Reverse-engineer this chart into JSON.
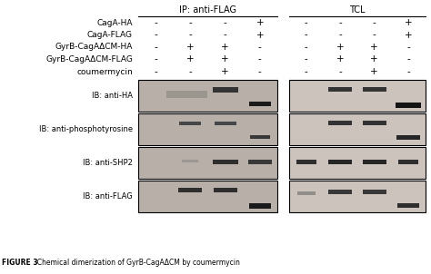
{
  "ip_label": "IP: anti-FLAG",
  "tcl_label": "TCL",
  "row_labels": [
    "CagA-HA",
    "CagA-FLAG",
    "GyrB-CagAΔCM-HA",
    "GyrB-CagAΔCM-FLAG",
    "coumermycin"
  ],
  "ib_labels": [
    "IB: anti-HA",
    "IB: anti-phosphotyrosine",
    "IB: anti-SHP2",
    "IB: anti-FLAG"
  ],
  "plus_minus_ip": [
    [
      "-",
      "-",
      "-",
      "+"
    ],
    [
      "-",
      "-",
      "-",
      "+"
    ],
    [
      "-",
      "+",
      "+",
      "-"
    ],
    [
      "-",
      "+",
      "+",
      "-"
    ],
    [
      "-",
      "-",
      "+",
      "-"
    ]
  ],
  "plus_minus_tcl": [
    [
      "-",
      "-",
      "-",
      "+"
    ],
    [
      "-",
      "-",
      "-",
      "+"
    ],
    [
      "-",
      "+",
      "+",
      "-"
    ],
    [
      "-",
      "+",
      "+",
      "-"
    ],
    [
      "-",
      "-",
      "+",
      "-"
    ]
  ],
  "bg_color": "#ffffff",
  "text_color": "#000000",
  "caption": "FIGURE 3",
  "caption_rest": "  Chemical dimerization of GyrB-CagAΔCM by coumermycin"
}
